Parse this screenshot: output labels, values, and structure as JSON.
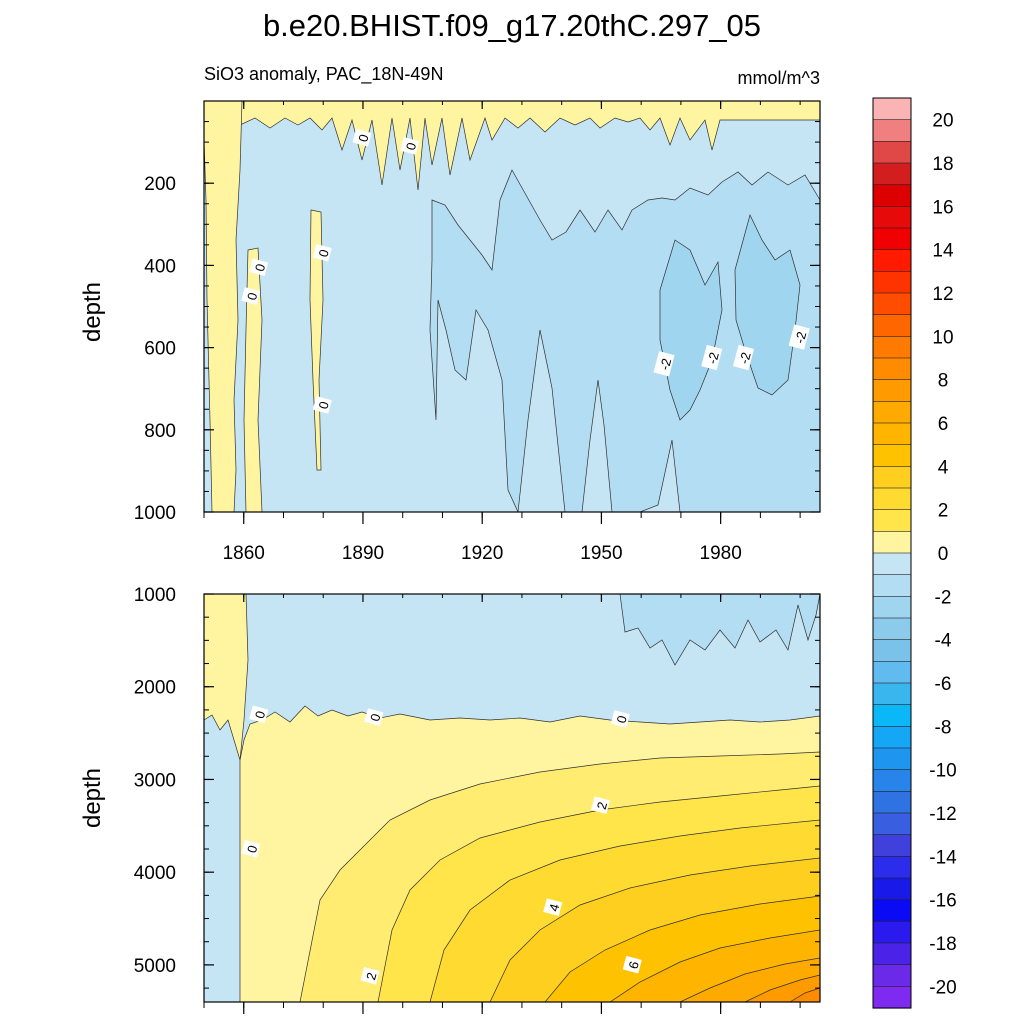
{
  "chart_data": {
    "type": "contour",
    "title": "b.e20.BHIST.f09_g17.20thC.297_05",
    "subtitle_left": "SiO3 anomaly, PAC_18N-49N",
    "units": "mmol/m^3",
    "x_ticks": [
      1860,
      1890,
      1920,
      1950,
      1980
    ],
    "x_range": [
      1850,
      2005
    ],
    "colorbar": {
      "labels": [
        "20",
        "18",
        "16",
        "14",
        "12",
        "10",
        "8",
        "6",
        "4",
        "2",
        "0",
        "-2",
        "-4",
        "-6",
        "-8",
        "-10",
        "-12",
        "-14",
        "-16",
        "-18",
        "-20"
      ],
      "levels": [
        21,
        20,
        19,
        18,
        17,
        16,
        15,
        14,
        13,
        12,
        11,
        10,
        9,
        8,
        7,
        6,
        5,
        4,
        3,
        2,
        1,
        0,
        -1,
        -2,
        -3,
        -4,
        -5,
        -6,
        -7,
        -8,
        -9,
        -10,
        -11,
        -12,
        -13,
        -14,
        -15,
        -16,
        -17,
        -18,
        -19,
        -20,
        -21
      ],
      "colors": [
        "#fbb4b4",
        "#f08080",
        "#e04848",
        "#d21e1e",
        "#dc0000",
        "#e60a0a",
        "#f00000",
        "#ff1a00",
        "#ff3300",
        "#ff4d00",
        "#ff6600",
        "#ff7a00",
        "#ff8c00",
        "#ff9a00",
        "#ffaa00",
        "#ffb400",
        "#ffc200",
        "#ffcf20",
        "#ffda30",
        "#ffe44a",
        "#fff5a0",
        "#c5e4f4",
        "#b3ddf2",
        "#a0d5ef",
        "#8ccbec",
        "#7ac2ea",
        "#62bbef",
        "#3ab6ef",
        "#0ab7f7",
        "#15a6f5",
        "#1e96ef",
        "#2884e8",
        "#2f72e2",
        "#3a5ee0",
        "#4040dd",
        "#2c2cec",
        "#1a1ae8",
        "#0a0af5",
        "#2a1aee",
        "#4a22e8",
        "#6a2ae8",
        "#7e2af0"
      ]
    },
    "panels": [
      {
        "name": "upper-ocean",
        "ylabel": "depth",
        "y_range": [
          0,
          1000
        ],
        "y_ticks": [
          200,
          400,
          600,
          800,
          1000
        ],
        "contour_labels": [
          {
            "value": "0",
            "x": 1890,
            "y": 90
          },
          {
            "value": "0",
            "x": 1902,
            "y": 110
          },
          {
            "value": "0",
            "x": 1864,
            "y": 405
          },
          {
            "value": "0",
            "x": 1880,
            "y": 370
          },
          {
            "value": "0",
            "x": 1862,
            "y": 475
          },
          {
            "value": "0",
            "x": 1880,
            "y": 740
          },
          {
            "value": "-2",
            "x": 1966,
            "y": 640
          },
          {
            "value": "-2",
            "x": 1978,
            "y": 625
          },
          {
            "value": "-2",
            "x": 1986,
            "y": 625
          },
          {
            "value": "-2",
            "x": 2000,
            "y": 575
          }
        ]
      },
      {
        "name": "deep-ocean",
        "ylabel": "depth",
        "y_range": [
          1000,
          5400
        ],
        "y_ticks": [
          1000,
          2000,
          3000,
          4000,
          5000
        ],
        "contour_labels": [
          {
            "value": "0",
            "x": 1864,
            "y": 2300
          },
          {
            "value": "0",
            "x": 1893,
            "y": 2330
          },
          {
            "value": "0",
            "x": 1955,
            "y": 2350
          },
          {
            "value": "0",
            "x": 1862,
            "y": 3750
          },
          {
            "value": "2",
            "x": 1950,
            "y": 3280
          },
          {
            "value": "4",
            "x": 1938,
            "y": 4380
          },
          {
            "value": "6",
            "x": 1958,
            "y": 5000
          },
          {
            "value": "2",
            "x": 1892,
            "y": 5120
          }
        ]
      }
    ]
  }
}
